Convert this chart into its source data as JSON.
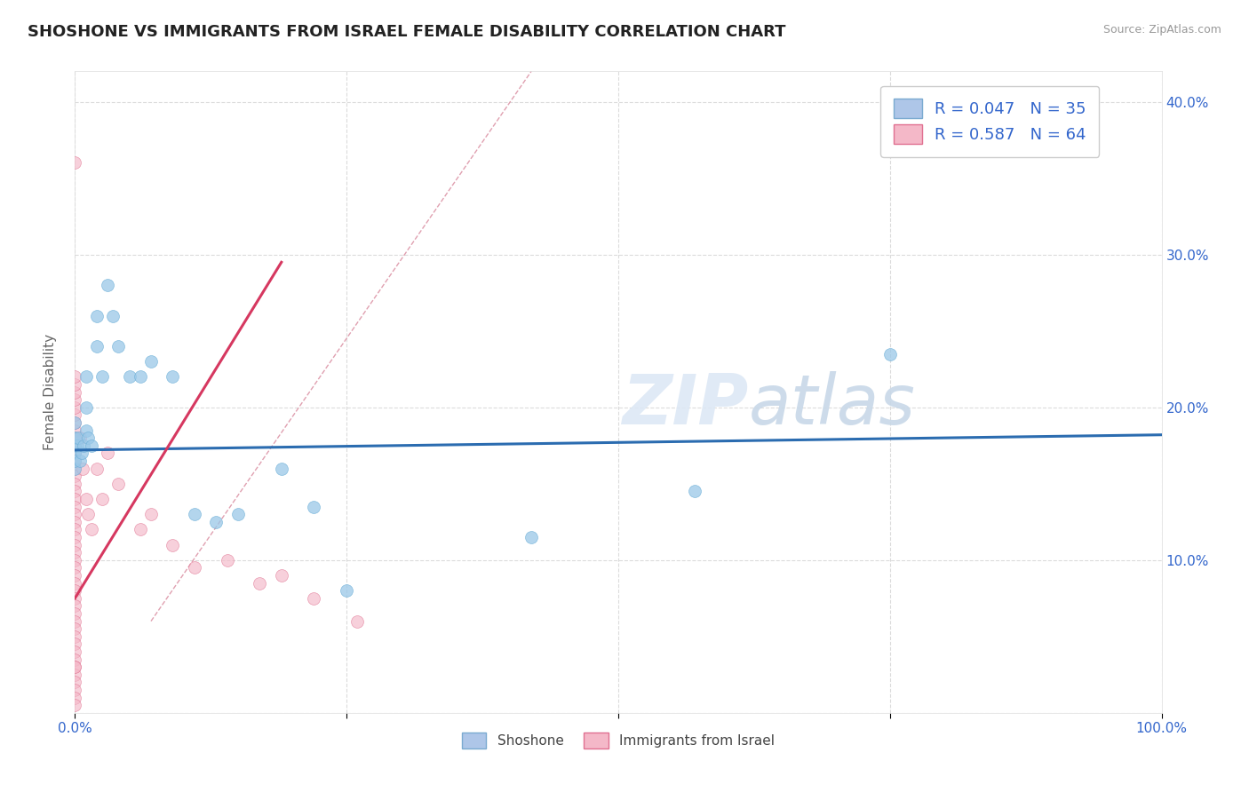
{
  "title": "SHOSHONE VS IMMIGRANTS FROM ISRAEL FEMALE DISABILITY CORRELATION CHART",
  "source": "Source: ZipAtlas.com",
  "xlabel": "",
  "ylabel": "Female Disability",
  "xlim": [
    0.0,
    1.0
  ],
  "ylim": [
    0.0,
    0.42
  ],
  "xtick_positions": [
    0.0,
    0.25,
    0.5,
    0.75,
    1.0
  ],
  "xticklabels": [
    "0.0%",
    "",
    "",
    "",
    "100.0%"
  ],
  "ytick_positions": [
    0.0,
    0.1,
    0.2,
    0.3,
    0.4
  ],
  "yticklabels_right": [
    "",
    "10.0%",
    "20.0%",
    "30.0%",
    "40.0%"
  ],
  "watermark": "ZIPatlas",
  "shoshone_scatter": {
    "color": "#9ac8e8",
    "edge_color": "#6aaed6",
    "alpha": 0.75,
    "size": 100,
    "x": [
      0.0,
      0.0,
      0.0,
      0.0,
      0.0,
      0.0,
      0.002,
      0.003,
      0.005,
      0.006,
      0.008,
      0.01,
      0.01,
      0.01,
      0.012,
      0.015,
      0.02,
      0.02,
      0.025,
      0.03,
      0.035,
      0.04,
      0.05,
      0.06,
      0.07,
      0.09,
      0.11,
      0.13,
      0.15,
      0.19,
      0.22,
      0.25,
      0.42,
      0.57,
      0.75
    ],
    "y": [
      0.175,
      0.17,
      0.16,
      0.19,
      0.18,
      0.165,
      0.175,
      0.18,
      0.165,
      0.17,
      0.175,
      0.22,
      0.2,
      0.185,
      0.18,
      0.175,
      0.26,
      0.24,
      0.22,
      0.28,
      0.26,
      0.24,
      0.22,
      0.22,
      0.23,
      0.22,
      0.13,
      0.125,
      0.13,
      0.16,
      0.135,
      0.08,
      0.115,
      0.145,
      0.235
    ]
  },
  "israel_scatter": {
    "color": "#f4b8c8",
    "edge_color": "#e07090",
    "alpha": 0.65,
    "size": 100,
    "x": [
      0.0,
      0.0,
      0.0,
      0.0,
      0.0,
      0.0,
      0.0,
      0.0,
      0.0,
      0.0,
      0.0,
      0.0,
      0.0,
      0.0,
      0.0,
      0.0,
      0.0,
      0.0,
      0.0,
      0.0,
      0.0,
      0.0,
      0.0,
      0.0,
      0.0,
      0.0,
      0.0,
      0.0,
      0.0,
      0.0,
      0.0,
      0.0,
      0.0,
      0.0,
      0.0,
      0.0,
      0.0,
      0.0,
      0.0,
      0.0,
      0.0,
      0.0,
      0.0,
      0.0,
      0.0,
      0.0,
      0.005,
      0.007,
      0.01,
      0.012,
      0.015,
      0.02,
      0.025,
      0.03,
      0.04,
      0.06,
      0.07,
      0.09,
      0.11,
      0.14,
      0.17,
      0.19,
      0.22,
      0.26
    ],
    "y": [
      0.18,
      0.17,
      0.175,
      0.165,
      0.16,
      0.155,
      0.15,
      0.145,
      0.14,
      0.135,
      0.13,
      0.125,
      0.12,
      0.115,
      0.11,
      0.105,
      0.1,
      0.095,
      0.09,
      0.085,
      0.08,
      0.075,
      0.07,
      0.065,
      0.06,
      0.055,
      0.05,
      0.045,
      0.04,
      0.035,
      0.03,
      0.025,
      0.02,
      0.015,
      0.01,
      0.005,
      0.185,
      0.19,
      0.195,
      0.2,
      0.205,
      0.21,
      0.215,
      0.22,
      0.36,
      0.03,
      0.18,
      0.16,
      0.14,
      0.13,
      0.12,
      0.16,
      0.14,
      0.17,
      0.15,
      0.12,
      0.13,
      0.11,
      0.095,
      0.1,
      0.085,
      0.09,
      0.075,
      0.06
    ]
  },
  "shoshone_trend": {
    "color": "#2b6cb0",
    "linewidth": 2.2,
    "x_start": 0.0,
    "x_end": 1.0,
    "y_start": 0.172,
    "y_end": 0.182
  },
  "israel_trend": {
    "color": "#d63860",
    "linewidth": 2.2,
    "x_start": 0.0,
    "x_end": 0.19,
    "y_start": 0.075,
    "y_end": 0.295
  },
  "ref_line": {
    "color": "#e0a0b0",
    "linewidth": 1.0,
    "linestyle": "--",
    "x_start": 0.07,
    "x_end": 0.42,
    "y_start": 0.06,
    "y_end": 0.42
  },
  "background_color": "#ffffff",
  "grid_color": "#cccccc",
  "grid_alpha": 0.7,
  "title_fontsize": 13,
  "source_fontsize": 9,
  "tick_fontsize": 11,
  "ylabel_fontsize": 11
}
